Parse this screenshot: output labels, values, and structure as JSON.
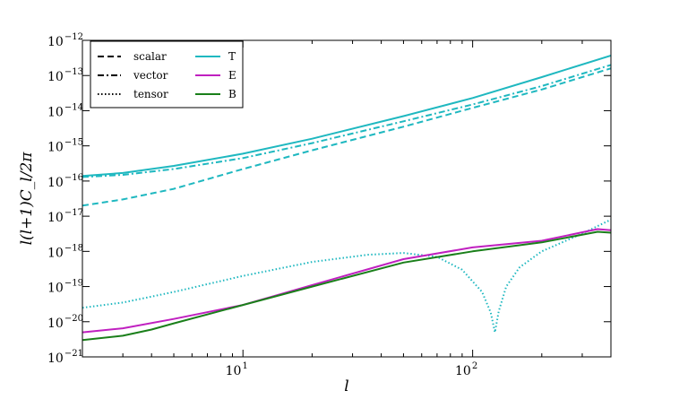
{
  "chart_data": {
    "type": "line",
    "title": "",
    "xlabel": "l",
    "ylabel": "l(l+1)C_l/2π",
    "xscale": "log",
    "yscale": "log",
    "xlim": [
      2,
      400
    ],
    "ylim": [
      1e-21,
      1e-12
    ],
    "grid": false,
    "legend_position": "top-left",
    "x_ticks": [
      {
        "value": 10,
        "base": "10",
        "exp": "1"
      },
      {
        "value": 100,
        "base": "10",
        "exp": "2"
      }
    ],
    "y_ticks": [
      {
        "value": 1e-21,
        "base": "10",
        "exp": "−21"
      },
      {
        "value": 1e-20,
        "base": "10",
        "exp": "−20"
      },
      {
        "value": 1e-19,
        "base": "10",
        "exp": "−19"
      },
      {
        "value": 1e-18,
        "base": "10",
        "exp": "−18"
      },
      {
        "value": 1e-17,
        "base": "10",
        "exp": "−17"
      },
      {
        "value": 1e-16,
        "base": "10",
        "exp": "−16"
      },
      {
        "value": 1e-15,
        "base": "10",
        "exp": "−15"
      },
      {
        "value": 1e-14,
        "base": "10",
        "exp": "−14"
      },
      {
        "value": 1e-13,
        "base": "10",
        "exp": "−13"
      },
      {
        "value": 1e-12,
        "base": "10",
        "exp": "−12"
      }
    ],
    "legend_styles": [
      {
        "label": "scalar",
        "dash": "dashed"
      },
      {
        "label": "vector",
        "dash": "dashdot"
      },
      {
        "label": "tensor",
        "dash": "dotted"
      }
    ],
    "legend_colors": [
      {
        "label": "T",
        "color": "#1fb8c0"
      },
      {
        "label": "E",
        "color": "#c020c0"
      },
      {
        "label": "B",
        "color": "#1a7f1a"
      }
    ],
    "series": [
      {
        "component": "T",
        "type": "scalar+vector+tensor (total)",
        "color": "#1fb8c0",
        "dash": "solid",
        "x": [
          2,
          3,
          5,
          10,
          20,
          50,
          100,
          200,
          400
        ],
        "y": [
          1.4e-16,
          1.7e-16,
          2.7e-16,
          6e-16,
          1.6e-15,
          7e-15,
          2.3e-14,
          9e-14,
          3.7e-13
        ]
      },
      {
        "component": "T",
        "type": "vector",
        "color": "#1fb8c0",
        "dash": "dashdot",
        "x": [
          2,
          3,
          5,
          10,
          20,
          50,
          100,
          200,
          400
        ],
        "y": [
          1.3e-16,
          1.5e-16,
          2.2e-16,
          4.5e-16,
          1.2e-15,
          5e-15,
          1.5e-14,
          5e-14,
          2e-13
        ]
      },
      {
        "component": "T",
        "type": "scalar",
        "color": "#1fb8c0",
        "dash": "dashed",
        "x": [
          2,
          3,
          5,
          10,
          20,
          50,
          100,
          200,
          400
        ],
        "y": [
          2e-17,
          3e-17,
          6e-17,
          2.2e-16,
          7.5e-16,
          3.5e-15,
          1.2e-14,
          4e-14,
          1.6e-13
        ]
      },
      {
        "component": "T",
        "type": "tensor",
        "color": "#1fb8c0",
        "dash": "dotted",
        "x": [
          2,
          3,
          5,
          10,
          20,
          35,
          50,
          70,
          90,
          110,
          120,
          125,
          130,
          140,
          160,
          200,
          300,
          400
        ],
        "y": [
          2.5e-20,
          3.5e-20,
          7e-20,
          2e-19,
          5e-19,
          8e-19,
          9e-19,
          7e-19,
          3e-19,
          7e-20,
          1.8e-20,
          5e-21,
          2e-20,
          1e-19,
          3.5e-19,
          1e-18,
          3.2e-18,
          8e-18
        ]
      },
      {
        "component": "E",
        "type": "total",
        "color": "#c020c0",
        "dash": "solid",
        "x": [
          2,
          3,
          5,
          10,
          20,
          50,
          100,
          200,
          350,
          400
        ],
        "y": [
          5e-21,
          6.5e-21,
          1.2e-20,
          3e-20,
          1.1e-19,
          6e-19,
          1.3e-18,
          2e-18,
          4.3e-18,
          4e-18
        ]
      },
      {
        "component": "B",
        "type": "total",
        "color": "#1a7f1a",
        "dash": "solid",
        "x": [
          2,
          3,
          4,
          5,
          10,
          20,
          50,
          100,
          200,
          350,
          400
        ],
        "y": [
          3e-21,
          4e-21,
          6e-21,
          9e-21,
          3e-20,
          1e-19,
          4.8e-19,
          1e-18,
          1.8e-18,
          3.6e-18,
          3.4e-18
        ]
      }
    ]
  }
}
